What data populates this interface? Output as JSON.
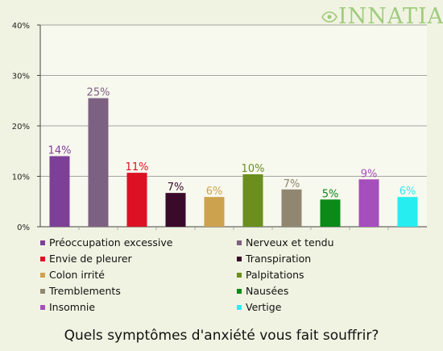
{
  "brand": {
    "logo_text": "INNATIA",
    "color": "#9ecb7c"
  },
  "question": "Quels symptômes d'anxiété vous fait souffrir?",
  "chart_data": {
    "type": "bar",
    "yticks": [
      "0%",
      "10%",
      "20%",
      "30%",
      "40%"
    ],
    "ylim": [
      0,
      40
    ],
    "grid": true,
    "legend_position": "bottom",
    "categories": [
      "Préoccupation excessive",
      "Nerveux et tendu",
      "Envie de pleurer",
      "Transpiration",
      "Colon irrité",
      "Palpitations",
      "Tremblements",
      "Nausées",
      "Insomnie",
      "Vertige"
    ],
    "values": [
      14,
      25.5,
      10.7,
      6.7,
      5.9,
      10.4,
      7.4,
      5.4,
      9.4,
      5.9
    ],
    "labels": [
      "14%",
      "25%",
      "11%",
      "7%",
      "6%",
      "10%",
      "7%",
      "5%",
      "9%",
      "6%"
    ],
    "colors": [
      "#7e3f98",
      "#7d6182",
      "#dd1124",
      "#3a0a2b",
      "#cda24f",
      "#6b8e1f",
      "#918770",
      "#0b8a18",
      "#a54fbc",
      "#26edf0"
    ]
  }
}
